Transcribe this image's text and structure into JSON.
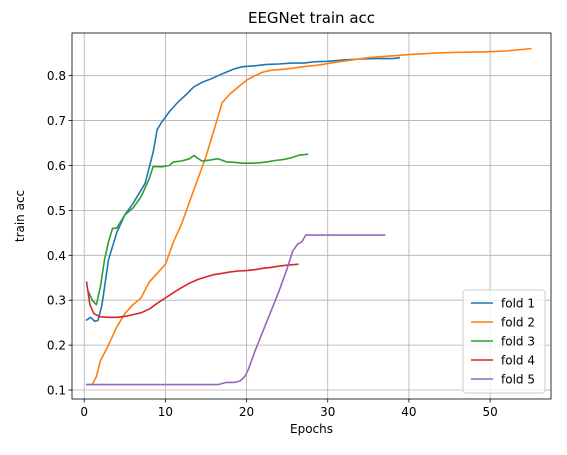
{
  "chart_data": {
    "type": "line",
    "title": "EEGNet train acc",
    "xlabel": "Epochs",
    "ylabel": "train acc",
    "xlim": [
      -1.5,
      57.5
    ],
    "ylim": [
      0.08,
      0.895
    ],
    "xticks": [
      0,
      10,
      20,
      30,
      40,
      50
    ],
    "yticks": [
      0.1,
      0.2,
      0.3,
      0.4,
      0.5,
      0.6,
      0.7,
      0.8
    ],
    "grid": true,
    "legend_position": "lower right",
    "series": [
      {
        "name": "fold 1",
        "color": "#1f77b4",
        "x": [
          0.3,
          0.8,
          1.3,
          1.7,
          2.2,
          3,
          4,
          5,
          6,
          7,
          7.5,
          8.5,
          9,
          9.5,
          10.5,
          11.5,
          12.5,
          13.5,
          14.5,
          15.5,
          16.5,
          17.5,
          18.5,
          19.5,
          21,
          22.5,
          24,
          25.5,
          27,
          28.5,
          30,
          32,
          34,
          36,
          38,
          38.8
        ],
        "y": [
          0.256,
          0.262,
          0.253,
          0.255,
          0.29,
          0.39,
          0.45,
          0.49,
          0.515,
          0.545,
          0.56,
          0.63,
          0.68,
          0.695,
          0.72,
          0.74,
          0.757,
          0.775,
          0.785,
          0.792,
          0.8,
          0.808,
          0.815,
          0.82,
          0.822,
          0.825,
          0.826,
          0.828,
          0.828,
          0.831,
          0.832,
          0.835,
          0.837,
          0.838,
          0.838,
          0.84
        ]
      },
      {
        "name": "fold 2",
        "color": "#ff7f0e",
        "x": [
          0.5,
          1,
          1.5,
          2,
          3,
          4,
          5,
          6,
          7,
          8,
          9,
          10,
          11,
          12,
          13,
          14,
          15,
          16,
          17,
          18,
          19,
          20,
          21,
          22,
          23,
          25,
          27,
          29,
          31,
          33,
          35,
          37,
          40,
          43,
          46,
          49,
          52,
          55
        ],
        "y": [
          0.112,
          0.112,
          0.13,
          0.165,
          0.2,
          0.24,
          0.27,
          0.29,
          0.305,
          0.34,
          0.36,
          0.38,
          0.43,
          0.47,
          0.52,
          0.57,
          0.62,
          0.68,
          0.74,
          0.76,
          0.775,
          0.79,
          0.8,
          0.808,
          0.812,
          0.815,
          0.82,
          0.824,
          0.83,
          0.835,
          0.84,
          0.843,
          0.847,
          0.85,
          0.852,
          0.853,
          0.855,
          0.86
        ]
      },
      {
        "name": "fold 3",
        "color": "#2ca02c",
        "x": [
          0.5,
          1,
          1.5,
          2,
          2.5,
          3,
          3.5,
          4,
          5,
          6,
          7,
          8,
          8.5,
          9.5,
          10.5,
          11,
          12,
          13,
          13.5,
          14.5,
          15.5,
          16.5,
          17.5,
          18.5,
          19.5,
          20.5,
          21.5,
          22.5,
          23.5,
          24.5,
          25.5,
          26.5,
          27.5
        ],
        "y": [
          0.32,
          0.3,
          0.29,
          0.33,
          0.39,
          0.43,
          0.46,
          0.46,
          0.49,
          0.505,
          0.53,
          0.57,
          0.598,
          0.597,
          0.6,
          0.608,
          0.61,
          0.615,
          0.622,
          0.61,
          0.612,
          0.615,
          0.608,
          0.607,
          0.605,
          0.605,
          0.606,
          0.608,
          0.611,
          0.613,
          0.617,
          0.623,
          0.625
        ]
      },
      {
        "name": "fold 4",
        "color": "#d62728",
        "x": [
          0.3,
          0.7,
          1.2,
          2,
          3,
          4,
          5,
          6,
          7,
          8,
          9,
          10,
          11,
          12,
          13,
          14,
          15,
          16,
          17,
          18,
          19,
          20,
          21,
          22,
          23,
          24,
          25,
          26.3
        ],
        "y": [
          0.34,
          0.29,
          0.27,
          0.263,
          0.262,
          0.262,
          0.264,
          0.268,
          0.272,
          0.28,
          0.293,
          0.305,
          0.317,
          0.328,
          0.338,
          0.346,
          0.352,
          0.357,
          0.36,
          0.363,
          0.365,
          0.366,
          0.368,
          0.371,
          0.373,
          0.376,
          0.378,
          0.38
        ]
      },
      {
        "name": "fold 5",
        "color": "#9467bd",
        "x": [
          0.3,
          2,
          5,
          10,
          14,
          16.5,
          17.5,
          18.5,
          19.2,
          19.8,
          20.2,
          21,
          22,
          23,
          24,
          25,
          25.7,
          26.3,
          26.8,
          27.3,
          30,
          33,
          35,
          37
        ],
        "y": [
          0.112,
          0.112,
          0.112,
          0.112,
          0.112,
          0.112,
          0.117,
          0.117,
          0.12,
          0.13,
          0.145,
          0.185,
          0.23,
          0.275,
          0.32,
          0.37,
          0.41,
          0.425,
          0.43,
          0.445,
          0.445,
          0.445,
          0.445,
          0.445
        ]
      }
    ]
  }
}
